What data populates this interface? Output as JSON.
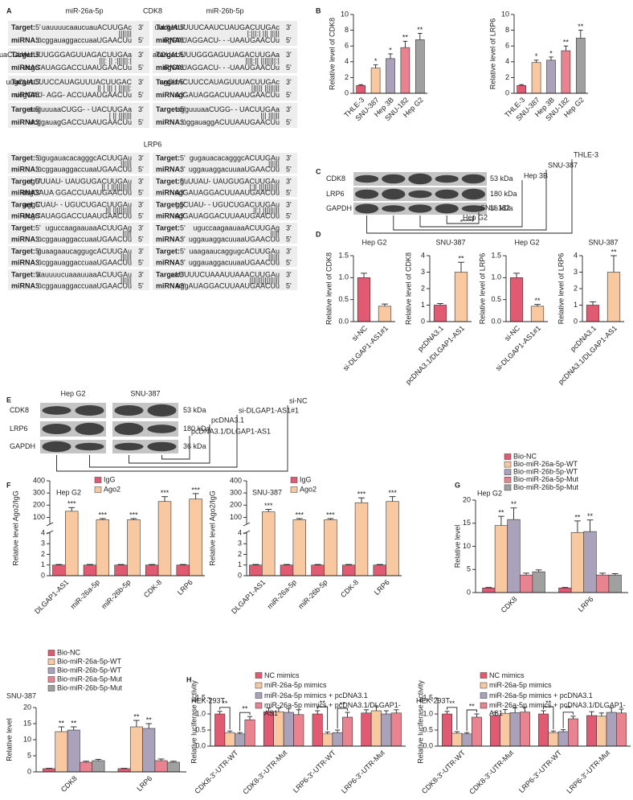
{
  "panels": [
    "A",
    "B",
    "C",
    "D",
    "E",
    "F",
    "G",
    "H"
  ],
  "alignment": {
    "headers": [
      "miR-26a-5p",
      "CDK8",
      "miR-26b-5p"
    ],
    "section2": "LRP6",
    "target_label": "Target:",
    "mirna_label": "miRNA:",
    "five": "5'",
    "three": "3'",
    "cdk8": [
      [
        {
          "target": "uauuuucaaucuauACUUGAc",
          "pairs": "|||||||",
          "mirna": "ucggauaggaccuaaUGAACUu"
        },
        {
          "target": "uuUUAUUUUCAAUCUAUGACUUGAc",
          "pairs": "|:|||:|  ||| |||||",
          "mirna": "ugGAUAGGACU- - -UAAUGAACUu"
        }
      ],
      [
        {
          "target": "uaCCUAUUUUGGGAGUUAGACUUGAa",
          "pairs": "|||: ||  :||||||:|",
          "mirna": "ucgGAUAGGACCUAAUGAACUu"
        },
        {
          "target": "acCUAUUUUGGGAGUUAGACUUGAa",
          "pairs": "||||:||   ||||||||:|",
          "mirna": "ugGAUAGGACU- - -UAAUGAACUu"
        }
      ],
      [
        {
          "target": "uugCUACUUCCAUAGUUUACUUGAC",
          "pairs": "|| | ||| |  ||||||:",
          "mirna": "ucgGAU- AGG- ACCUAAUGAACUu"
        },
        {
          "target": "ugCUACUUCCAUAGUUUACUUGAc",
          "pairs": "||||||   ||||||||",
          "mirna": "ugGAUAGGACUUAAUGAACUu"
        }
      ],
      [
        {
          "target": "aaguuuaaCUGG- - UACUUGAa",
          "pairs": "| ||   |||||||",
          "mirna": "ucggauagGACCUAAUGAACUu"
        },
        {
          "target": "agguuuaaCUGG- - UACUUGAa",
          "pairs": "|||  ||||||",
          "mirna": "uggauaggACUUAAUGAACUu"
        }
      ]
    ],
    "lrp6": [
      [
        {
          "target": "ugugauacacagggcACUUGAu",
          "pairs": "||||||",
          "mirna": "ucggauaggaccuaaUGAACUu"
        },
        {
          "target": "gugauacacagggcACUUGAu",
          "pairs": "||||||",
          "mirna": "uggauaggacuuaaUGAACUu"
        }
      ],
      [
        {
          "target": "ugUUUAU- UAUGUGACUUGAu",
          "pairs": "|| | |||||||||||",
          "mirna": "ucgGAUA GGACCUAAUGAACUu"
        },
        {
          "target": "guUUAU- UAUGUGACUUGAu",
          "pairs": "|:|| |||||||||||",
          "mirna": "ugGAUAGGACUUAAUGAACUu"
        }
      ],
      [
        {
          "target": "aggCUAU- - UGUCUGACUUGAu",
          "pairs": "||| ||||||||||",
          "mirna": "ucgGAUAGGACCUAAUGAACUu"
        },
        {
          "target": "ggCUAU- - UGUCUGACUUGAu",
          "pairs": "||:|  |||||||||",
          "mirna": "ugGAUAGGACUUAAUGAACUu"
        }
      ],
      [
        {
          "target": "uguccaagaauaaACUUGAg",
          "pairs": "|||||",
          "mirna": "ucggauaggaccuaaUGAACUu"
        },
        {
          "target": "uguccaagaauaaACUUGAg",
          "pairs": "|||||",
          "mirna": "uggauaggacuuaaUGAACUu"
        }
      ],
      [
        {
          "target": "guaagaaucaggugcACUUGAu",
          "pairs": "||||||",
          "mirna": "ucggauaggaccuaaUGAACUu"
        },
        {
          "target": "uaagaaucaggugcACUUGAu",
          "pairs": "||||||",
          "mirna": "uggauaggacuuaaUGAACUu"
        }
      ],
      [
        {
          "target": "aauuuucuaaauuaaACUUGAu",
          "pairs": "||||||",
          "mirna": "ucggauaggaccuaaUGAACUu"
        },
        {
          "target": "gaaUUUUCUAAAUUAAACUUGAu",
          "pairs": "||||||||||||||||",
          "mirna": "uggAUAGGACUUAAUGAACUu"
        }
      ]
    ]
  },
  "blot_c": {
    "rows": [
      "CDK8",
      "LRP6",
      "GAPDH"
    ],
    "sizes": [
      "53 kDa",
      "180 kDa",
      "36 kDa"
    ],
    "lanes": [
      "THLE-3",
      "SNU-387",
      "Hep 3B",
      "SNU-182",
      "Hep G2"
    ]
  },
  "blot_e": {
    "groups": [
      "Hep G2",
      "SNU-387"
    ],
    "rows": [
      "CDK8",
      "LRP6",
      "GAPDH"
    ],
    "sizes": [
      "53 kDa",
      "180 kDa",
      "36 kDa"
    ],
    "lanes": [
      "si-NC",
      "si-DLGAP1-AS1#1",
      "pcDNA3.1",
      "pcDNA3.1/DLGAP1-AS1"
    ]
  },
  "chart_data": [
    {
      "type": "bar",
      "ylabel": "Relative level of CDK8",
      "ylim": [
        0,
        10
      ],
      "yticks": [
        0,
        2,
        4,
        6,
        8,
        10
      ],
      "categories": [
        "THLE-3",
        "SNU-387",
        "Hep 3B",
        "SNU-182",
        "Hep G2"
      ],
      "values": [
        1,
        3.2,
        4.4,
        5.8,
        6.8
      ],
      "errors": [
        0.1,
        0.4,
        0.6,
        0.8,
        0.8
      ],
      "colors": [
        "#e15a72",
        "#f8c8a0",
        "#a9a2ba",
        "#e8838f",
        "#a0a0a0"
      ],
      "annotations": [
        null,
        "*",
        "*",
        "**",
        "**"
      ]
    },
    {
      "type": "bar",
      "ylabel": "Relative level of LRP6",
      "ylim": [
        0,
        10
      ],
      "yticks": [
        0,
        2,
        4,
        6,
        8,
        10
      ],
      "categories": [
        "THLE-3",
        "SNU-387",
        "Hep 3B",
        "SNU-182",
        "Hep G2"
      ],
      "values": [
        1,
        3.9,
        4.2,
        5.4,
        7.0
      ],
      "errors": [
        0.1,
        0.3,
        0.4,
        0.6,
        1.0
      ],
      "colors": [
        "#e15a72",
        "#f8c8a0",
        "#a9a2ba",
        "#e8838f",
        "#a0a0a0"
      ],
      "annotations": [
        null,
        "*",
        "*",
        "**",
        "**"
      ]
    },
    {
      "type": "bar",
      "title": "Hep G2",
      "ylabel": "Relative level of CDK8",
      "ylim": [
        0,
        1.5
      ],
      "yticks": [
        {
          "value": 0,
          "label": "0.0"
        },
        0.5,
        {
          "value": 1,
          "label": "1.0"
        },
        1.5
      ],
      "categories": [
        "si-NC",
        "si-DLGAP1-AS1#1"
      ],
      "values": [
        1.0,
        0.35
      ],
      "errors": [
        0.1,
        0.05
      ],
      "colors": [
        "#e15a72",
        "#f8c8a0"
      ],
      "annotations": [
        null,
        null
      ]
    },
    {
      "type": "bar",
      "title": "SNU-387",
      "ylabel": "Relative level of CDK8",
      "ylim": [
        0,
        4
      ],
      "yticks": [
        0,
        1,
        2,
        3,
        4
      ],
      "categories": [
        "pcDNA3.1",
        "pcDNA3.1/DLGAP1-AS1"
      ],
      "values": [
        1.0,
        3.0
      ],
      "errors": [
        0.1,
        0.6
      ],
      "colors": [
        "#e15a72",
        "#f8c8a0"
      ],
      "annotations": [
        null,
        "**"
      ]
    },
    {
      "type": "bar",
      "title": "Hep G2",
      "ylabel": "Relative level of LRP6",
      "ylim": [
        0,
        1.5
      ],
      "yticks": [
        {
          "value": 0,
          "label": "0.0"
        },
        0.5,
        {
          "value": 1,
          "label": "1.0"
        },
        1.5
      ],
      "categories": [
        "si-NC",
        "si-DLGAP1-AS1#1"
      ],
      "values": [
        1.0,
        0.35
      ],
      "errors": [
        0.1,
        0.04
      ],
      "colors": [
        "#e15a72",
        "#f8c8a0"
      ],
      "annotations": [
        null,
        "**"
      ]
    },
    {
      "type": "bar",
      "title": "SNU-387",
      "ylabel": "Relative level of LRP6",
      "ylim": [
        0,
        4
      ],
      "yticks": [
        0,
        1,
        2,
        3,
        4
      ],
      "categories": [
        "pcDNA3.1",
        "pcDNA3.1/DLGAP1-AS1"
      ],
      "values": [
        1.0,
        3.0
      ],
      "errors": [
        0.2,
        1.0
      ],
      "colors": [
        "#e15a72",
        "#f8c8a0"
      ],
      "annotations": [
        null,
        "**"
      ]
    },
    {
      "type": "bar",
      "title": "Hep G2",
      "ylabel": "Relative level Ago2/IgG",
      "ylim": [
        0,
        400
      ],
      "axis_break": [
        4,
        50
      ],
      "yticks": [
        0,
        1,
        2,
        3,
        4,
        100,
        200,
        300,
        400
      ],
      "categories": [
        "DLGAP1-AS1",
        "miR-26a-5p",
        "miR-26b-5p",
        "CDK-8",
        "LRP6"
      ],
      "series": [
        {
          "name": "IgG",
          "color": "#e15a72",
          "values": [
            1,
            1,
            1,
            1,
            1
          ],
          "errors": [
            0.05,
            0.05,
            0.05,
            0.05,
            0.05
          ]
        },
        {
          "name": "Ago2",
          "color": "#f8c8a0",
          "values": [
            150,
            80,
            80,
            230,
            250
          ],
          "errors": [
            30,
            10,
            10,
            40,
            45
          ],
          "annotations": [
            "***",
            "***",
            "***",
            "***",
            "***"
          ]
        }
      ]
    },
    {
      "type": "bar",
      "title": "SNU-387",
      "ylabel": "Relative level Ago2/IgG",
      "ylim": [
        0,
        400
      ],
      "axis_break": [
        4,
        50
      ],
      "yticks": [
        0,
        1,
        2,
        3,
        4,
        100,
        200,
        300,
        400
      ],
      "categories": [
        "DLGAP1-AS1",
        "miR-26a-5p",
        "miR-26b-5p",
        "CDK-8",
        "LRP6"
      ],
      "series": [
        {
          "name": "IgG",
          "color": "#e15a72",
          "values": [
            1,
            1,
            1,
            1,
            1
          ],
          "errors": [
            0.05,
            0.05,
            0.05,
            0.05,
            0.05
          ]
        },
        {
          "name": "Ago2",
          "color": "#f8c8a0",
          "values": [
            145,
            80,
            80,
            220,
            230
          ],
          "errors": [
            20,
            10,
            10,
            40,
            40
          ],
          "annotations": [
            "***",
            "***",
            "***",
            "***",
            "***"
          ]
        }
      ]
    },
    {
      "type": "bar",
      "title": "Hep G2",
      "ylabel": "Relative level",
      "ylim": [
        0,
        20
      ],
      "yticks": [
        0,
        5,
        10,
        15,
        20
      ],
      "categories": [
        "CDK8",
        "LRP6"
      ],
      "series": [
        {
          "name": "Bio-NC",
          "color": "#e15a72",
          "values": [
            1,
            1
          ],
          "errors": [
            0.1,
            0.1
          ]
        },
        {
          "name": "Bio-miR-26a-5p-WT",
          "color": "#f8c8a0",
          "values": [
            14.5,
            13.0
          ],
          "errors": [
            2,
            2.5
          ],
          "annotations": [
            "**",
            "**"
          ]
        },
        {
          "name": "Bio-miR-26b-5p-WT",
          "color": "#a9a2ba",
          "values": [
            15.8,
            13.2
          ],
          "errors": [
            2.5,
            2.5
          ],
          "annotations": [
            "**",
            "**"
          ]
        },
        {
          "name": "Bio-miR-26a-5p-Mut",
          "color": "#e8838f",
          "values": [
            3.8,
            3.8
          ],
          "errors": [
            0.4,
            0.4
          ]
        },
        {
          "name": "Bio-miR-26b-5p-Mut",
          "color": "#a0a0a0",
          "values": [
            4.5,
            3.8
          ],
          "errors": [
            0.4,
            0.3
          ]
        }
      ]
    },
    {
      "type": "bar",
      "title": "SNU-387",
      "ylabel": "Relative level",
      "ylim": [
        0,
        20
      ],
      "yticks": [
        0,
        5,
        10,
        15,
        20
      ],
      "categories": [
        "CDK8",
        "LRP6"
      ],
      "series": [
        {
          "name": "Bio-NC",
          "color": "#e15a72",
          "values": [
            1,
            1
          ],
          "errors": [
            0.1,
            0.1
          ]
        },
        {
          "name": "Bio-miR-26a-5p-WT",
          "color": "#f8c8a0",
          "values": [
            12.5,
            14
          ],
          "errors": [
            1.5,
            2
          ],
          "annotations": [
            "**",
            "**"
          ]
        },
        {
          "name": "Bio-miR-26b-5p-WT",
          "color": "#a9a2ba",
          "values": [
            13,
            13.5
          ],
          "errors": [
            1,
            1.5
          ],
          "annotations": [
            "**",
            "**"
          ]
        },
        {
          "name": "Bio-miR-26a-5p-Mut",
          "color": "#e8838f",
          "values": [
            3,
            3.5
          ],
          "errors": [
            0.3,
            0.5
          ]
        },
        {
          "name": "Bio-miR-26b-5p-Mut",
          "color": "#a0a0a0",
          "values": [
            3.5,
            3
          ],
          "errors": [
            0.4,
            0.3
          ]
        }
      ]
    },
    {
      "type": "bar",
      "title": "HEK-293T",
      "ylabel": "Relative luciferase activity",
      "ylim": [
        0,
        1.5
      ],
      "yticks": [
        {
          "value": 0,
          "label": "0.0"
        },
        0.5,
        {
          "value": 1,
          "label": "1.0"
        },
        1.5
      ],
      "categories": [
        "CDK8-3'-UTR-WT",
        "CDK8-3'-UTR-Mut",
        "LRP6-3'-UTR-WT",
        "LRP6-3'-UTR-Mut"
      ],
      "series": [
        {
          "name": "NC mimics",
          "color": "#e15a72",
          "values": [
            1.0,
            1.07,
            1.0,
            1.03
          ],
          "errors": [
            0.08,
            0.12,
            0.1,
            0.1
          ]
        },
        {
          "name": "miR-26a-5p mimics",
          "color": "#f8c8a0",
          "values": [
            0.42,
            1.07,
            0.38,
            1.1
          ],
          "errors": [
            0.05,
            0.12,
            0.06,
            0.15
          ]
        },
        {
          "name": "miR-26a-5p mimics + pcDNA3.1",
          "color": "#a9a2ba",
          "values": [
            0.38,
            1.05,
            0.42,
            1.0
          ],
          "errors": [
            0.04,
            0.12,
            0.08,
            0.1
          ]
        },
        {
          "name": "miR-26a-5p mimics + pcDNA3.1/DLGAP1-AS1",
          "color": "#e8838f",
          "values": [
            0.82,
            0.98,
            0.9,
            1.03
          ],
          "errors": [
            0.1,
            0.15,
            0.15,
            0.1
          ]
        }
      ],
      "brackets": [
        {
          "category": 0,
          "between": [
            0,
            1
          ],
          "label": "**"
        },
        {
          "category": 0,
          "between": [
            2,
            3
          ],
          "label": "**"
        },
        {
          "category": 2,
          "between": [
            0,
            1
          ],
          "label": "**"
        },
        {
          "category": 2,
          "between": [
            2,
            3
          ],
          "label": "**"
        }
      ]
    },
    {
      "type": "bar",
      "title": "HEK-293T",
      "ylabel": "Relative luciferase activity",
      "ylim": [
        0,
        1.5
      ],
      "yticks": [
        {
          "value": 0,
          "label": "0.0"
        },
        0.5,
        {
          "value": 1,
          "label": "1.0"
        },
        1.5
      ],
      "categories": [
        "CDK8-3'-UTR-WT",
        "CDK8-3'-UTR-Mut",
        "LRP6-3'-UTR-WT",
        "LRP6-3'-UTR-Mut"
      ],
      "series": [
        {
          "name": "NC mimics",
          "color": "#e15a72",
          "values": [
            1.0,
            0.95,
            1.0,
            0.95
          ],
          "errors": [
            0.08,
            0.1,
            0.1,
            0.12
          ]
        },
        {
          "name": "miR-26a-5p mimics",
          "color": "#f8c8a0",
          "values": [
            0.4,
            1.02,
            0.42,
            0.93
          ],
          "errors": [
            0.05,
            0.12,
            0.05,
            0.1
          ]
        },
        {
          "name": "miR-26a-5p mimics + pcDNA3.1",
          "color": "#a9a2ba",
          "values": [
            0.38,
            1.04,
            0.45,
            1.05
          ],
          "errors": [
            0.04,
            0.15,
            0.06,
            0.15
          ]
        },
        {
          "name": "miR-26a-5p mimics + pcDNA3.1/DLGAP1-AS1",
          "color": "#e8838f",
          "values": [
            0.9,
            1.06,
            0.85,
            1.03
          ],
          "errors": [
            0.1,
            0.15,
            0.08,
            0.12
          ]
        }
      ],
      "brackets": [
        {
          "category": 0,
          "between": [
            0,
            1
          ],
          "label": "**"
        },
        {
          "category": 0,
          "between": [
            2,
            3
          ],
          "label": "**"
        },
        {
          "category": 2,
          "between": [
            0,
            1
          ],
          "label": "**"
        },
        {
          "category": 2,
          "between": [
            2,
            3
          ],
          "label": "**"
        }
      ]
    }
  ]
}
